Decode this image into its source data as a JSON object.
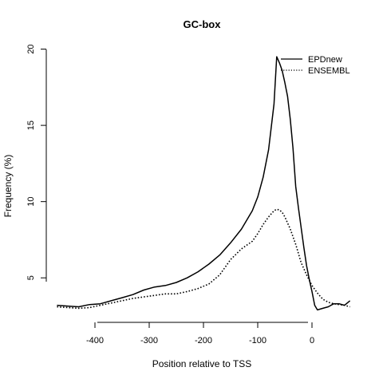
{
  "chart_data": {
    "type": "line",
    "title": "GC-box",
    "xlabel": "Position relative to TSS",
    "ylabel": "Frequency (%)",
    "xlim": [
      -475,
      75
    ],
    "ylim": [
      2.5,
      20.5
    ],
    "x_ticks": [
      -400,
      -300,
      -200,
      -100,
      0
    ],
    "x_tick_labels": [
      "-400",
      "-300",
      "-200",
      "-100",
      "0"
    ],
    "y_ticks": [
      5,
      10,
      15,
      20
    ],
    "y_tick_labels": [
      "5",
      "10",
      "15",
      "20"
    ],
    "grid": false,
    "legend_position": "top-right",
    "series": [
      {
        "name": "EPDnew",
        "line_style": "solid",
        "color": "#000000",
        "x": [
          -470,
          -450,
          -430,
          -410,
          -390,
          -370,
          -350,
          -330,
          -310,
          -290,
          -270,
          -250,
          -230,
          -210,
          -190,
          -170,
          -150,
          -130,
          -110,
          -100,
          -90,
          -80,
          -70,
          -65,
          -60,
          -55,
          -50,
          -45,
          -40,
          -35,
          -30,
          -25,
          -20,
          -15,
          -10,
          -5,
          0,
          5,
          10,
          20,
          30,
          40,
          50,
          60,
          70
        ],
        "y": [
          3.2,
          3.15,
          3.1,
          3.25,
          3.3,
          3.5,
          3.7,
          3.9,
          4.2,
          4.4,
          4.5,
          4.7,
          5.0,
          5.4,
          5.9,
          6.5,
          7.3,
          8.2,
          9.4,
          10.3,
          11.6,
          13.4,
          16.4,
          19.5,
          19.1,
          18.6,
          17.8,
          16.9,
          15.4,
          13.5,
          11.0,
          9.6,
          8.3,
          7.0,
          5.8,
          4.9,
          4.1,
          3.2,
          2.9,
          3.0,
          3.1,
          3.3,
          3.3,
          3.2,
          3.5
        ]
      },
      {
        "name": "ENSEMBL",
        "line_style": "dotted",
        "color": "#000000",
        "x": [
          -470,
          -450,
          -430,
          -410,
          -390,
          -370,
          -350,
          -330,
          -310,
          -290,
          -270,
          -250,
          -230,
          -210,
          -190,
          -170,
          -150,
          -130,
          -110,
          -100,
          -90,
          -80,
          -70,
          -65,
          -60,
          -55,
          -50,
          -40,
          -30,
          -20,
          -10,
          0,
          10,
          20,
          30,
          40,
          50,
          60,
          70
        ],
        "y": [
          3.1,
          3.05,
          3.0,
          3.05,
          3.2,
          3.35,
          3.5,
          3.65,
          3.75,
          3.85,
          3.95,
          3.95,
          4.1,
          4.3,
          4.6,
          5.2,
          6.2,
          6.9,
          7.4,
          7.9,
          8.5,
          9.0,
          9.4,
          9.5,
          9.45,
          9.3,
          9.0,
          8.2,
          7.2,
          6.0,
          5.2,
          4.5,
          4.0,
          3.6,
          3.4,
          3.3,
          3.25,
          3.2,
          3.1
        ]
      }
    ]
  }
}
